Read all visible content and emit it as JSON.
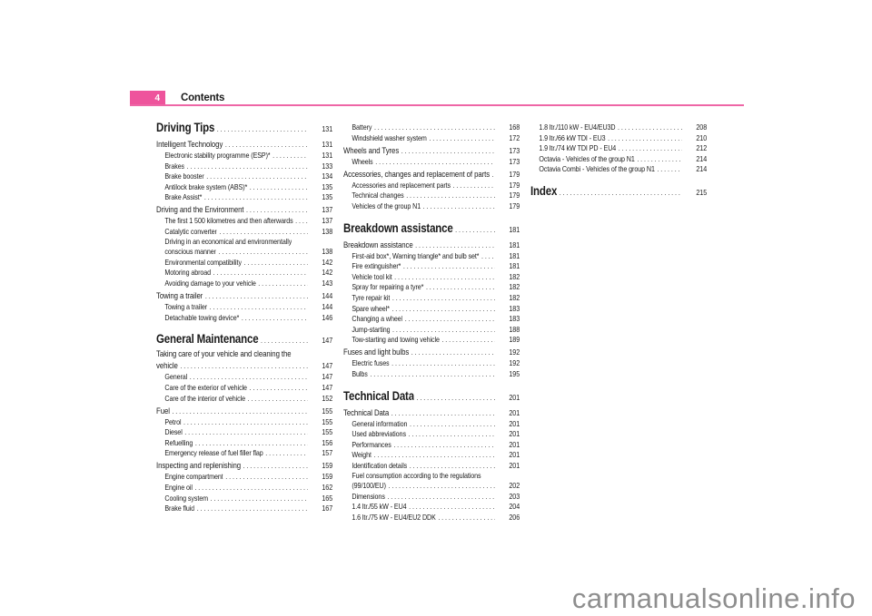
{
  "header": {
    "page_number": "4",
    "title": "Contents"
  },
  "watermark": "carmanualsonline.info",
  "colors": {
    "accent_pink": "#EE549C",
    "rule_pink": "#EE66A6",
    "text": "#1a1a1a",
    "watermark_gray": "#8e8e8e"
  },
  "columns": [
    {
      "entries": [
        {
          "s": "h1",
          "t": "Driving Tips",
          "p": "131"
        },
        {
          "s": "h2",
          "t": "Intelligent Technology",
          "p": "131"
        },
        {
          "s": "item",
          "t": "Electronic stability programme (ESP)*",
          "p": "131"
        },
        {
          "s": "item",
          "t": "Brakes",
          "p": "133"
        },
        {
          "s": "item",
          "t": "Brake booster",
          "p": "134"
        },
        {
          "s": "item",
          "t": "Antilock brake system (ABS)*",
          "p": "135"
        },
        {
          "s": "item",
          "t": "Brake Assist*",
          "p": "135"
        },
        {
          "s": "h2",
          "t": "Driving and the Environment",
          "p": "137"
        },
        {
          "s": "item",
          "t": "The first 1 500 kilometres and then afterwards",
          "p": "137"
        },
        {
          "s": "item",
          "t": "Catalytic converter",
          "p": "138"
        },
        {
          "s": "item",
          "t": "Driving in an economical and environmentally"
        },
        {
          "s": "item",
          "t": "conscious manner",
          "p": "138",
          "cont": true
        },
        {
          "s": "item",
          "t": "Environmental compatibility",
          "p": "142"
        },
        {
          "s": "item",
          "t": "Motoring abroad",
          "p": "142"
        },
        {
          "s": "item",
          "t": "Avoiding damage to your vehicle",
          "p": "143"
        },
        {
          "s": "h2",
          "t": "Towing a trailer",
          "p": "144"
        },
        {
          "s": "item",
          "t": "Towing a trailer",
          "p": "144"
        },
        {
          "s": "item",
          "t": "Detachable towing device*",
          "p": "146"
        },
        {
          "s": "h1",
          "t": "General Maintenance",
          "p": "147"
        },
        {
          "s": "h2",
          "t": "Taking care of your vehicle and cleaning the"
        },
        {
          "s": "h2",
          "t": "vehicle",
          "p": "147",
          "cont": true
        },
        {
          "s": "item",
          "t": "General",
          "p": "147"
        },
        {
          "s": "item",
          "t": "Care of the exterior of vehicle",
          "p": "147"
        },
        {
          "s": "item",
          "t": "Care of the interior of vehicle",
          "p": "152"
        },
        {
          "s": "h2",
          "t": "Fuel",
          "p": "155"
        },
        {
          "s": "item",
          "t": "Petrol",
          "p": "155"
        },
        {
          "s": "item",
          "t": "Diesel",
          "p": "155"
        },
        {
          "s": "item",
          "t": "Refuelling",
          "p": "156"
        },
        {
          "s": "item",
          "t": "Emergency release of fuel filler flap",
          "p": "157"
        },
        {
          "s": "h2",
          "t": "Inspecting and replenishing",
          "p": "159"
        },
        {
          "s": "item",
          "t": "Engine compartment",
          "p": "159"
        },
        {
          "s": "item",
          "t": "Engine oil",
          "p": "162"
        },
        {
          "s": "item",
          "t": "Cooling system",
          "p": "165"
        },
        {
          "s": "item",
          "t": "Brake fluid",
          "p": "167"
        }
      ]
    },
    {
      "entries": [
        {
          "s": "item",
          "t": "Battery",
          "p": "168"
        },
        {
          "s": "item",
          "t": "Windshield washer system",
          "p": "172"
        },
        {
          "s": "h2",
          "t": "Wheels and Tyres",
          "p": "173"
        },
        {
          "s": "item",
          "t": "Wheels",
          "p": "173"
        },
        {
          "s": "h2",
          "t": "Accessories, changes and replacement of parts",
          "p": "179"
        },
        {
          "s": "item",
          "t": "Accessories and replacement parts",
          "p": "179"
        },
        {
          "s": "item",
          "t": "Technical changes",
          "p": "179"
        },
        {
          "s": "item",
          "t": "Vehicles of the group N1",
          "p": "179"
        },
        {
          "s": "h1",
          "t": "Breakdown assistance",
          "p": "181"
        },
        {
          "s": "h2",
          "t": "Breakdown assistance",
          "p": "181"
        },
        {
          "s": "item",
          "t": "First-aid box*, Warning triangle* and bulb set*",
          "p": "181"
        },
        {
          "s": "item",
          "t": "Fire extinguisher*",
          "p": "181"
        },
        {
          "s": "item",
          "t": "Vehicle tool kit",
          "p": "182"
        },
        {
          "s": "item",
          "t": "Spray for repairing a tyre*",
          "p": "182"
        },
        {
          "s": "item",
          "t": "Tyre repair kit",
          "p": "182"
        },
        {
          "s": "item",
          "t": "Spare wheel*",
          "p": "183"
        },
        {
          "s": "item",
          "t": "Changing a wheel",
          "p": "183"
        },
        {
          "s": "item",
          "t": "Jump-starting",
          "p": "188"
        },
        {
          "s": "item",
          "t": "Tow-starting and towing vehicle",
          "p": "189"
        },
        {
          "s": "h2",
          "t": "Fuses and light bulbs",
          "p": "192"
        },
        {
          "s": "item",
          "t": "Electric fuses",
          "p": "192"
        },
        {
          "s": "item",
          "t": "Bulbs",
          "p": "195"
        },
        {
          "s": "h1",
          "t": "Technical Data",
          "p": "201"
        },
        {
          "s": "h2",
          "t": "Technical Data",
          "p": "201"
        },
        {
          "s": "item",
          "t": "General information",
          "p": "201"
        },
        {
          "s": "item",
          "t": "Used abbreviations",
          "p": "201"
        },
        {
          "s": "item",
          "t": "Performances",
          "p": "201"
        },
        {
          "s": "item",
          "t": "Weight",
          "p": "201"
        },
        {
          "s": "item",
          "t": "Identification details",
          "p": "201"
        },
        {
          "s": "item",
          "t": "Fuel consumption according to the regulations"
        },
        {
          "s": "item",
          "t": "(99/100/EU)",
          "p": "202",
          "cont": true
        },
        {
          "s": "item",
          "t": "Dimensions",
          "p": "203"
        },
        {
          "s": "item",
          "t": "1.4 ltr./55 kW - EU4",
          "p": "204"
        },
        {
          "s": "item",
          "t": "1.6 ltr./75 kW - EU4/EU2 DDK",
          "p": "206"
        }
      ]
    },
    {
      "entries": [
        {
          "s": "item",
          "t": "1.8 ltr./110 kW - EU4/EU3D",
          "p": "208"
        },
        {
          "s": "item",
          "t": "1.9 ltr./66 kW TDI - EU3",
          "p": "210"
        },
        {
          "s": "item",
          "t": "1.9 ltr./74 kW TDI PD - EU4",
          "p": "212"
        },
        {
          "s": "item",
          "t": "Octavia - Vehicles of the group N1",
          "p": "214"
        },
        {
          "s": "item",
          "t": "Octavia Combi - Vehicles of the group N1",
          "p": "214"
        },
        {
          "s": "h1",
          "t": "Index",
          "p": "215"
        }
      ]
    }
  ]
}
